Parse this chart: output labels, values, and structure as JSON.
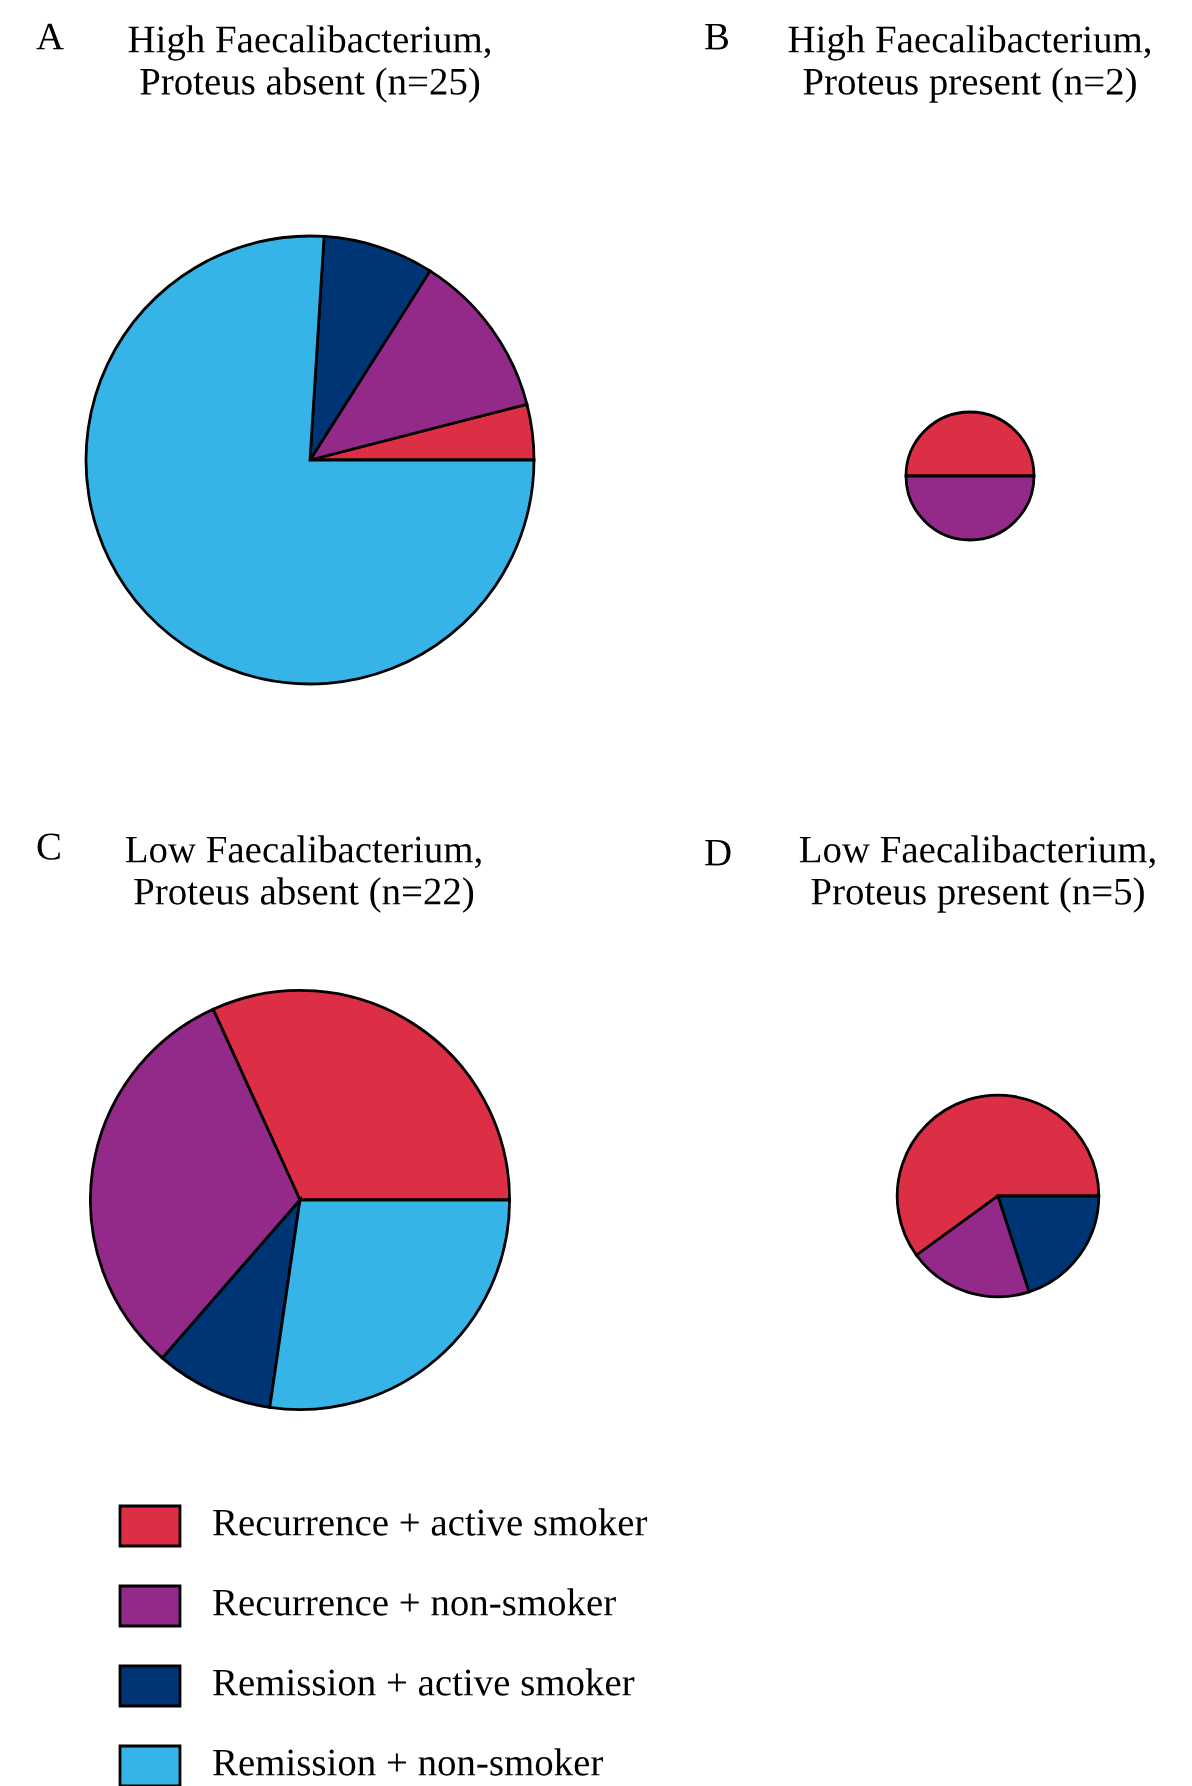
{
  "chart_data": [
    {
      "type": "pie",
      "title": "High Faecalibacterium,\nProteus absent (n=25)",
      "annotations": [
        "A"
      ],
      "categories": [
        "Recurrence + active smoker",
        "Recurrence + non-smoker",
        "Remission + active smoker",
        "Remission + non-smoker"
      ],
      "values": [
        4,
        12,
        8,
        76
      ],
      "colors": [
        "#dc2e44",
        "#932a8a",
        "#003575",
        "#36b4e8"
      ],
      "legend": "bottom"
    },
    {
      "type": "pie",
      "title": "High Faecalibacterium,\nProteus present (n=2)",
      "annotations": [
        "B"
      ],
      "categories": [
        null,
        null
      ],
      "values": [
        50,
        50
      ],
      "colors": [
        "#dc2e44",
        "#932a8a"
      ]
    },
    {
      "type": "pie",
      "title": "Low Faecalibacterium,\nProteus absent (n=22)",
      "annotations": [
        "C"
      ],
      "categories": [
        null,
        null,
        null,
        null
      ],
      "values": [
        31.8,
        31.8,
        9.1,
        27.3
      ],
      "colors": [
        "#dc2e44",
        "#932a8a",
        "#003575",
        "#36b4e8"
      ]
    },
    {
      "type": "pie",
      "title": "Low Faecalibacterium,\nProteus present (n=5)",
      "annotations": [
        "D"
      ],
      "categories": [
        null,
        null,
        null
      ],
      "values": [
        60,
        20,
        20
      ],
      "colors": [
        "#dc2e44",
        "#932a8a",
        "#003575"
      ]
    }
  ]
}
